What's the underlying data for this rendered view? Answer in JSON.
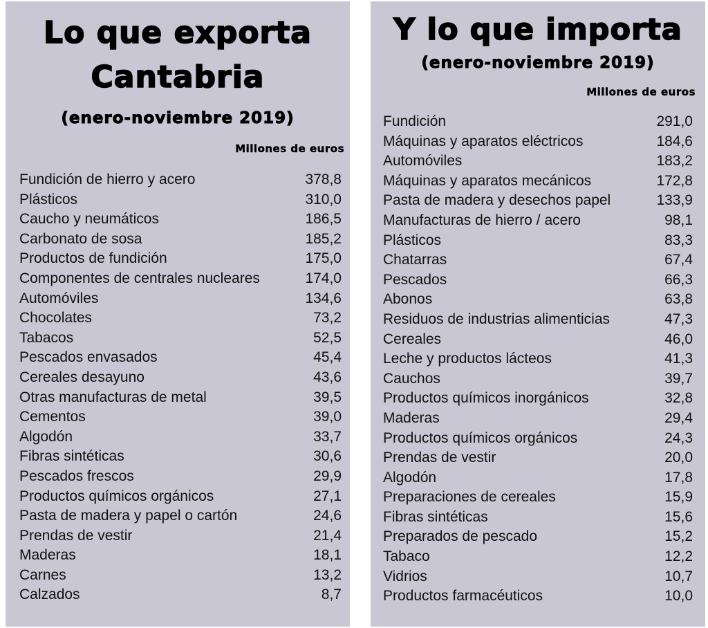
{
  "exports": {
    "title_line1": "Lo que exporta",
    "title_line2": "Cantabria",
    "subtitle": "(enero-noviembre 2019)",
    "unit": "Millones de euros",
    "rows": [
      {
        "label": "Fundición de hierro y acero",
        "value": "378,8"
      },
      {
        "label": "Plásticos",
        "value": "310,0"
      },
      {
        "label": "Caucho y neumáticos",
        "value": "186,5"
      },
      {
        "label": "Carbonato de sosa",
        "value": "185,2"
      },
      {
        "label": "Productos de fundición",
        "value": "175,0"
      },
      {
        "label": "Componentes de centrales nucleares",
        "value": "174,0"
      },
      {
        "label": "Automóviles",
        "value": "134,6"
      },
      {
        "label": "Chocolates",
        "value": "73,2"
      },
      {
        "label": "Tabacos",
        "value": "52,5"
      },
      {
        "label": "Pescados envasados",
        "value": "45,4"
      },
      {
        "label": "Cereales desayuno",
        "value": "43,6"
      },
      {
        "label": "Otras manufacturas de metal",
        "value": "39,5"
      },
      {
        "label": "Cementos",
        "value": "39,0"
      },
      {
        "label": "Algodón",
        "value": "33,7"
      },
      {
        "label": "Fibras sintéticas",
        "value": "30,6"
      },
      {
        "label": "Pescados frescos",
        "value": "29,9"
      },
      {
        "label": "Productos químicos orgánicos",
        "value": "27,1"
      },
      {
        "label": "Pasta de madera y papel o cartón",
        "value": "24,6"
      },
      {
        "label": "Prendas de vestir",
        "value": "21,4"
      },
      {
        "label": "Maderas",
        "value": "18,1"
      },
      {
        "label": "Carnes",
        "value": "13,2"
      },
      {
        "label": "Calzados",
        "value": "8,7"
      }
    ]
  },
  "imports": {
    "title_line1": "Y lo que importa",
    "subtitle": "(enero-noviembre 2019)",
    "unit": "Millones de euros",
    "rows": [
      {
        "label": "Fundición",
        "value": "291,0"
      },
      {
        "label": "Máquinas y aparatos eléctricos",
        "value": "184,6"
      },
      {
        "label": "Automóviles",
        "value": "183,2"
      },
      {
        "label": "Máquinas y aparatos mecánicos",
        "value": "172,8"
      },
      {
        "label": "Pasta de madera y desechos papel",
        "value": "133,9"
      },
      {
        "label": "Manufacturas de hierro / acero",
        "value": "98,1"
      },
      {
        "label": "Plásticos",
        "value": "83,3"
      },
      {
        "label": "Chatarras",
        "value": "67,4"
      },
      {
        "label": "Pescados",
        "value": "66,3"
      },
      {
        "label": "Abonos",
        "value": "63,8"
      },
      {
        "label": "Residuos de industrias alimenticias",
        "value": "47,3"
      },
      {
        "label": "Cereales",
        "value": "46,0"
      },
      {
        "label": "Leche y productos lácteos",
        "value": "41,3"
      },
      {
        "label": "Cauchos",
        "value": "39,7"
      },
      {
        "label": "Productos químicos inorgánicos",
        "value": "32,8"
      },
      {
        "label": "Maderas",
        "value": "29,4"
      },
      {
        "label": "Productos químicos orgánicos",
        "value": "24,3"
      },
      {
        "label": "Prendas de vestir",
        "value": "20,0"
      },
      {
        "label": "Algodón",
        "value": "17,8"
      },
      {
        "label": "Preparaciones de cereales",
        "value": "15,9"
      },
      {
        "label": "Fibras sintéticas",
        "value": "15,6"
      },
      {
        "label": "Preparados de pescado",
        "value": "15,2"
      },
      {
        "label": "Tabaco",
        "value": "12,2"
      },
      {
        "label": "Vidrios",
        "value": "10,7"
      },
      {
        "label": "Productos farmacéuticos",
        "value": "10,0"
      }
    ]
  },
  "colors": {
    "panel_background": "#c9c7d3",
    "text": "#000000"
  }
}
